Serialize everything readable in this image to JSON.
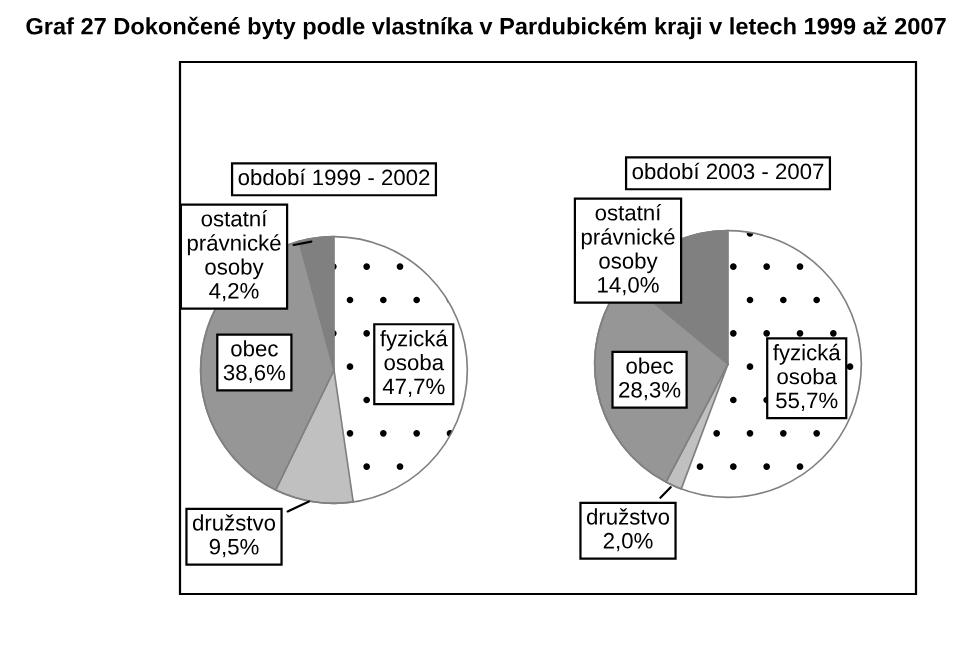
{
  "chart_data": [
    {
      "type": "pie",
      "title": "Graf 27 Dokončené byty podle vlastníka v Pardubickém kraji v letech 1999 až 2007",
      "subtitle": "období 1999 - 2002",
      "categories": [
        "fyzická osoba",
        "družstvo",
        "obec",
        "ostatní právnické osoby"
      ],
      "values": [
        47.7,
        9.5,
        38.6,
        4.2
      ],
      "value_labels": [
        "47,7%",
        "9,5%",
        "38,6%",
        "4,2%"
      ],
      "colors": [
        "#ffffff",
        "#c0c0c0",
        "#969696",
        "#808080"
      ]
    },
    {
      "type": "pie",
      "subtitle": "období 2003 - 2007",
      "categories": [
        "fyzická osoba",
        "družstvo",
        "obec",
        "ostatní právnické osoby"
      ],
      "values": [
        55.7,
        2.0,
        28.3,
        14.0
      ],
      "value_labels": [
        "55,7%",
        "2,0%",
        "28,3%",
        "14,0%"
      ],
      "colors": [
        "#ffffff",
        "#c0c0c0",
        "#969696",
        "#808080"
      ]
    }
  ]
}
